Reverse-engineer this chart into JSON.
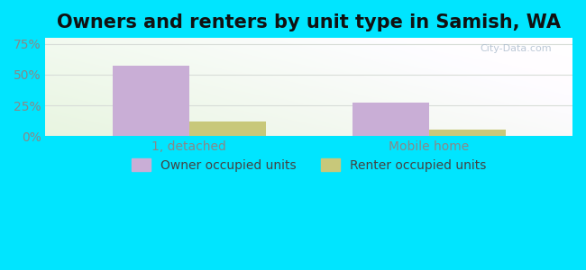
{
  "title": "Owners and renters by unit type in Samish, WA",
  "categories": [
    "1, detached",
    "Mobile home"
  ],
  "owner_values": [
    57,
    27
  ],
  "renter_values": [
    12,
    5
  ],
  "owner_color": "#c9aed6",
  "renter_color": "#c8c87a",
  "yticks": [
    0,
    25,
    50,
    75
  ],
  "ytick_labels": [
    "0%",
    "25%",
    "50%",
    "75%"
  ],
  "ylim": [
    0,
    80
  ],
  "bar_width": 0.32,
  "legend_owner": "Owner occupied units",
  "legend_renter": "Renter occupied units",
  "title_fontsize": 15,
  "tick_fontsize": 10,
  "legend_fontsize": 10,
  "watermark": "City-Data.com",
  "outer_bg": "#00e5ff",
  "grid_color": "#d8ddd8",
  "tick_color": "#888888",
  "xlim": [
    -0.6,
    1.6
  ]
}
